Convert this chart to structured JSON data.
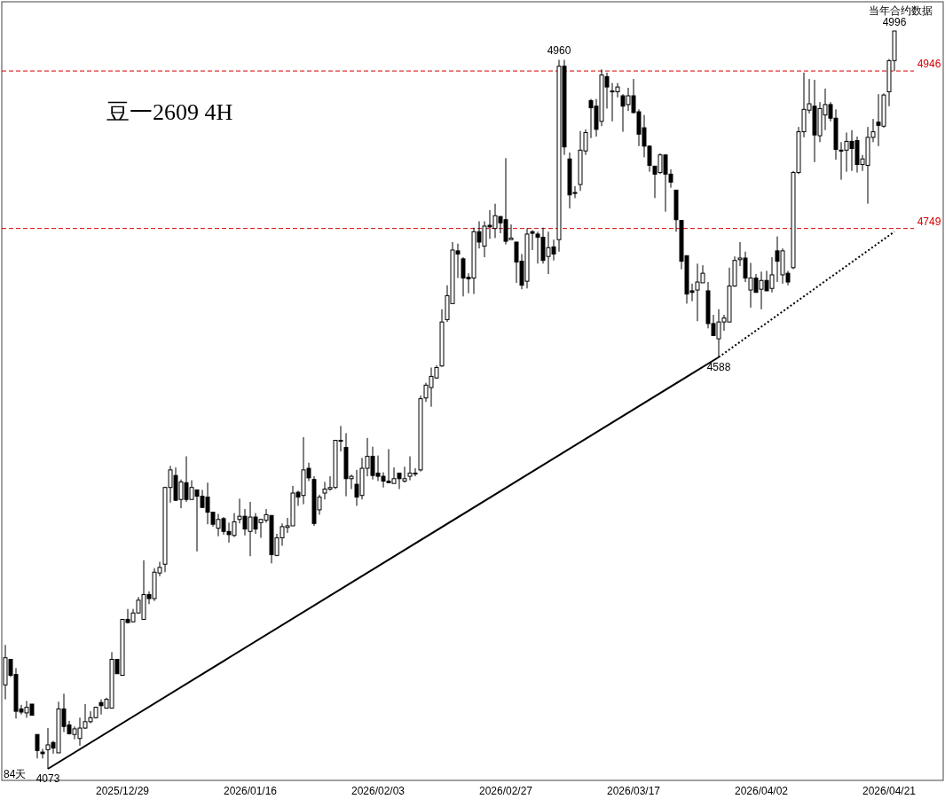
{
  "chart_data": {
    "type": "candlestick",
    "title": "豆一2609 4H",
    "categories": [
      null,
      null,
      null,
      null,
      null,
      null,
      null,
      null,
      null,
      null,
      null,
      null,
      null,
      null,
      null,
      null,
      null,
      null,
      null,
      null,
      null,
      null,
      "2025/12/29",
      null,
      null,
      null,
      null,
      null,
      null,
      null,
      null,
      null,
      null,
      null,
      null,
      null,
      null,
      null,
      null,
      null,
      null,
      null,
      null,
      null,
      null,
      null,
      "2026/01/16",
      null,
      null,
      null,
      null,
      null,
      null,
      null,
      null,
      null,
      null,
      null,
      null,
      null,
      null,
      null,
      null,
      null,
      null,
      null,
      null,
      null,
      null,
      null,
      "2026/02/03",
      null,
      null,
      null,
      null,
      null,
      null,
      null,
      null,
      null,
      null,
      null,
      null,
      null,
      null,
      null,
      null,
      null,
      null,
      null,
      null,
      null,
      null,
      null,
      "2026/02/27",
      null,
      null,
      null,
      null,
      null,
      null,
      null,
      null,
      null,
      null,
      null,
      null,
      null,
      null,
      null,
      null,
      null,
      null,
      null,
      null,
      null,
      null,
      null,
      "2026/03/17",
      null,
      null,
      null,
      null,
      null,
      null,
      null,
      null,
      null,
      null,
      null,
      null,
      null,
      null,
      null,
      null,
      null,
      null,
      null,
      null,
      null,
      null,
      null,
      "2026/04/02",
      null,
      null,
      null,
      null,
      null,
      null,
      null,
      null,
      null,
      null,
      null,
      null,
      null,
      null,
      null,
      null,
      null,
      null,
      null,
      null,
      null,
      null,
      null,
      "2026/04/21",
      null
    ],
    "ohlc": [
      [
        4178,
        4228,
        4160,
        4212
      ],
      [
        4210,
        4210,
        4188,
        4190
      ],
      [
        4191,
        4199,
        4136,
        4145
      ],
      [
        4148,
        4153,
        4141,
        4144
      ],
      [
        4143,
        4158,
        4137,
        4150
      ],
      [
        4154,
        4154,
        4140,
        4140
      ],
      [
        4116,
        4116,
        4086,
        4096
      ],
      [
        4094,
        4098,
        4086,
        4092
      ],
      [
        4097,
        4124,
        4073,
        4103
      ],
      [
        4106,
        4108,
        4092,
        4099
      ],
      [
        4093,
        4157,
        4093,
        4148
      ],
      [
        4148,
        4167,
        4119,
        4126
      ],
      [
        4128,
        4133,
        4116,
        4117
      ],
      [
        4116,
        4126,
        4110,
        4123
      ],
      [
        4111,
        4137,
        4102,
        4124
      ],
      [
        4124,
        4154,
        4123,
        4132
      ],
      [
        4132,
        4145,
        4130,
        4137
      ],
      [
        4137,
        4151,
        4136,
        4150
      ],
      [
        4156,
        4160,
        4141,
        4152
      ],
      [
        4149,
        4162,
        4149,
        4160
      ],
      [
        4149,
        4219,
        4149,
        4210
      ],
      [
        4210,
        4210,
        4192,
        4192
      ],
      [
        4190,
        4260,
        4190,
        4260
      ],
      [
        4260,
        4273,
        4255,
        4256
      ],
      [
        4257,
        4273,
        4256,
        4268
      ],
      [
        4268,
        4288,
        4267,
        4284
      ],
      [
        4260,
        4334,
        4260,
        4291
      ],
      [
        4291,
        4295,
        4279,
        4286
      ],
      [
        4286,
        4324,
        4283,
        4319
      ],
      [
        4318,
        4332,
        4314,
        4325
      ],
      [
        4329,
        4426,
        4319,
        4425
      ],
      [
        4425,
        4452,
        4406,
        4447
      ],
      [
        4440,
        4450,
        4408,
        4409
      ],
      [
        4410,
        4435,
        4399,
        4432
      ],
      [
        4431,
        4464,
        4407,
        4410
      ],
      [
        4410,
        4434,
        4410,
        4425
      ],
      [
        4422,
        4422,
        4345,
        4414
      ],
      [
        4414,
        4422,
        4400,
        4400
      ],
      [
        4413,
        4431,
        4379,
        4394
      ],
      [
        4394,
        4394,
        4376,
        4379
      ],
      [
        4374,
        4392,
        4364,
        4385
      ],
      [
        4386,
        4388,
        4366,
        4370
      ],
      [
        4370,
        4381,
        4356,
        4366
      ],
      [
        4365,
        4393,
        4363,
        4382
      ],
      [
        4385,
        4411,
        4380,
        4389
      ],
      [
        4389,
        4398,
        4365,
        4373
      ],
      [
        4370,
        4407,
        4339,
        4388
      ],
      [
        4388,
        4393,
        4367,
        4373
      ],
      [
        4381,
        4386,
        4362,
        4385
      ],
      [
        4384,
        4398,
        4381,
        4391
      ],
      [
        4390,
        4390,
        4330,
        4341
      ],
      [
        4340,
        4367,
        4339,
        4362
      ],
      [
        4362,
        4380,
        4352,
        4376
      ],
      [
        4375,
        4387,
        4368,
        4377
      ],
      [
        4377,
        4427,
        4377,
        4418
      ],
      [
        4419,
        4421,
        4402,
        4413
      ],
      [
        4415,
        4488,
        4404,
        4447
      ],
      [
        4449,
        4456,
        4433,
        4437
      ],
      [
        4435,
        4439,
        4377,
        4380
      ],
      [
        4397,
        4416,
        4391,
        4413
      ],
      [
        4418,
        4432,
        4410,
        4423
      ],
      [
        4423,
        4439,
        4421,
        4425
      ],
      [
        4425,
        4484,
        4423,
        4484
      ],
      [
        4484,
        4502,
        4470,
        4483
      ],
      [
        4475,
        4493,
        4414,
        4436
      ],
      [
        4436,
        4441,
        4423,
        4439
      ],
      [
        4429,
        4447,
        4402,
        4413
      ],
      [
        4415,
        4462,
        4410,
        4449
      ],
      [
        4449,
        4487,
        4439,
        4464
      ],
      [
        4464,
        4476,
        4435,
        4440
      ],
      [
        4443,
        4465,
        4433,
        4439
      ],
      [
        4439,
        4444,
        4425,
        4433
      ],
      [
        4433,
        4473,
        4431,
        4431
      ],
      [
        4430,
        4450,
        4430,
        4436
      ],
      [
        4443,
        4443,
        4423,
        4436
      ],
      [
        4433,
        4451,
        4431,
        4436
      ],
      [
        4439,
        4464,
        4434,
        4443
      ],
      [
        4443,
        4449,
        4439,
        4442
      ],
      [
        4447,
        4540,
        4445,
        4536
      ],
      [
        4537,
        4556,
        4532,
        4553
      ],
      [
        4550,
        4575,
        4526,
        4564
      ],
      [
        4562,
        4578,
        4561,
        4575
      ],
      [
        4577,
        4648,
        4576,
        4632
      ],
      [
        4635,
        4678,
        4632,
        4665
      ],
      [
        4655,
        4732,
        4655,
        4722
      ],
      [
        4721,
        4730,
        4687,
        4717
      ],
      [
        4711,
        4713,
        4664,
        4687
      ],
      [
        4688,
        4693,
        4668,
        4686
      ],
      [
        4687,
        4750,
        4667,
        4745
      ],
      [
        4745,
        4758,
        4724,
        4732
      ],
      [
        4727,
        4758,
        4713,
        4752
      ],
      [
        4753,
        4772,
        4736,
        4751
      ],
      [
        4749,
        4780,
        4737,
        4765
      ],
      [
        4764,
        4764,
        4743,
        4756
      ],
      [
        4760,
        4837,
        4729,
        4733
      ],
      [
        4735,
        4754,
        4735,
        4737
      ],
      [
        4732,
        4732,
        4681,
        4707
      ],
      [
        4708,
        4717,
        4673,
        4678
      ],
      [
        4683,
        4749,
        4674,
        4742
      ],
      [
        4745,
        4747,
        4722,
        4743
      ],
      [
        4742,
        4745,
        4705,
        4738
      ],
      [
        4738,
        4750,
        4705,
        4709
      ],
      [
        4714,
        4745,
        4692,
        4725
      ],
      [
        4726,
        4735,
        4709,
        4717
      ],
      [
        4735,
        4960,
        4720,
        4952
      ],
      [
        4952,
        4960,
        4841,
        4851
      ],
      [
        4836,
        4844,
        4774,
        4791
      ],
      [
        4794,
        4802,
        4787,
        4793
      ],
      [
        4804,
        4871,
        4796,
        4847
      ],
      [
        4846,
        4873,
        4841,
        4869
      ],
      [
        4909,
        4911,
        4862,
        4900
      ],
      [
        4902,
        4911,
        4864,
        4873
      ],
      [
        4883,
        4948,
        4877,
        4941
      ],
      [
        4939,
        4944,
        4899,
        4926
      ],
      [
        4921,
        4931,
        4883,
        4920
      ],
      [
        4920,
        4931,
        4913,
        4926
      ],
      [
        4915,
        4917,
        4870,
        4902
      ],
      [
        4904,
        4925,
        4896,
        4915
      ],
      [
        4915,
        4936,
        4893,
        4894
      ],
      [
        4895,
        4898,
        4852,
        4867
      ],
      [
        4875,
        4891,
        4838,
        4852
      ],
      [
        4852,
        4853,
        4820,
        4828
      ],
      [
        4827,
        4827,
        4787,
        4817
      ],
      [
        4819,
        4843,
        4817,
        4841
      ],
      [
        4841,
        4841,
        4770,
        4817
      ],
      [
        4817,
        4823,
        4800,
        4807
      ],
      [
        4797,
        4797,
        4745,
        4760
      ],
      [
        4759,
        4759,
        4698,
        4708
      ],
      [
        4715,
        4715,
        4655,
        4667
      ],
      [
        4671,
        4680,
        4658,
        4669
      ],
      [
        4672,
        4705,
        4633,
        4682
      ],
      [
        4681,
        4703,
        4681,
        4693
      ],
      [
        4671,
        4682,
        4624,
        4630
      ],
      [
        4630,
        4641,
        4615,
        4615
      ],
      [
        4611,
        4648,
        4588,
        4632
      ],
      [
        4632,
        4641,
        4621,
        4637
      ],
      [
        4632,
        4700,
        4632,
        4677
      ],
      [
        4677,
        4714,
        4676,
        4709
      ],
      [
        4710,
        4732,
        4702,
        4712
      ],
      [
        4712,
        4720,
        4682,
        4687
      ],
      [
        4672,
        4706,
        4650,
        4687
      ],
      [
        4687,
        4692,
        4669,
        4669
      ],
      [
        4673,
        4695,
        4648,
        4684
      ],
      [
        4684,
        4696,
        4671,
        4671
      ],
      [
        4674,
        4713,
        4669,
        4691
      ],
      [
        4721,
        4739,
        4682,
        4708
      ],
      [
        4691,
        4724,
        4680,
        4721
      ],
      [
        4693,
        4696,
        4678,
        4682
      ],
      [
        4700,
        4821,
        4698,
        4819
      ],
      [
        4819,
        4876,
        4817,
        4870
      ],
      [
        4870,
        4944,
        4863,
        4898
      ],
      [
        4897,
        4936,
        4893,
        4905
      ],
      [
        4902,
        4935,
        4832,
        4866
      ],
      [
        4865,
        4907,
        4857,
        4899
      ],
      [
        4891,
        4924,
        4872,
        4904
      ],
      [
        4904,
        4907,
        4883,
        4887
      ],
      [
        4887,
        4898,
        4835,
        4848
      ],
      [
        4847,
        4857,
        4810,
        4846
      ],
      [
        4847,
        4869,
        4820,
        4858
      ],
      [
        4858,
        4872,
        4821,
        4849
      ],
      [
        4859,
        4864,
        4819,
        4829
      ],
      [
        4829,
        4841,
        4821,
        4836
      ],
      [
        4828,
        4876,
        4780,
        4863
      ],
      [
        4863,
        4886,
        4857,
        4870
      ],
      [
        4882,
        4917,
        4852,
        4878
      ],
      [
        4877,
        4918,
        4875,
        4916
      ],
      [
        4920,
        4961,
        4902,
        4959
      ],
      [
        4959,
        4996,
        4946,
        4996
      ]
    ],
    "series": [
      {
        "type": "line",
        "values": [
          null,
          null,
          null,
          null,
          null,
          null,
          null,
          null,
          4073,
          null,
          null,
          null,
          null,
          null,
          null,
          null,
          null,
          null,
          null,
          null,
          null,
          null,
          null,
          null,
          null,
          null,
          null,
          null,
          null,
          null,
          null,
          null,
          null,
          null,
          null,
          null,
          null,
          null,
          null,
          null,
          null,
          null,
          null,
          null,
          null,
          null,
          null,
          null,
          null,
          null,
          null,
          null,
          null,
          null,
          null,
          null,
          null,
          null,
          null,
          null,
          null,
          null,
          null,
          null,
          null,
          null,
          null,
          null,
          null,
          null,
          null,
          null,
          null,
          null,
          null,
          null,
          null,
          null,
          null,
          null,
          null,
          null,
          null,
          null,
          null,
          null,
          null,
          null,
          null,
          null,
          null,
          null,
          null,
          null,
          null,
          null,
          null,
          null,
          null,
          null,
          null,
          null,
          null,
          null,
          null,
          null,
          null,
          null,
          null,
          null,
          null,
          null,
          null,
          null,
          null,
          null,
          null,
          null,
          null,
          null,
          null,
          null,
          null,
          null,
          null,
          null,
          null,
          null,
          null,
          null,
          null,
          null,
          null,
          null,
          4588,
          null,
          null,
          null,
          null,
          null,
          null,
          null,
          null,
          null,
          null,
          null,
          null,
          null,
          null,
          null,
          null,
          null,
          null,
          null,
          null,
          null,
          null,
          null,
          null,
          null,
          null,
          null,
          null,
          null,
          null,
          null,
          null,
          null
        ],
        "color": "#000000",
        "line_style": "solid"
      },
      {
        "type": "line",
        "values": [
          null,
          null,
          null,
          null,
          null,
          null,
          null,
          null,
          null,
          null,
          null,
          null,
          null,
          null,
          null,
          null,
          null,
          null,
          null,
          null,
          null,
          null,
          null,
          null,
          null,
          null,
          null,
          null,
          null,
          null,
          null,
          null,
          null,
          null,
          null,
          null,
          null,
          null,
          null,
          null,
          null,
          null,
          null,
          null,
          null,
          null,
          null,
          null,
          null,
          null,
          null,
          null,
          null,
          null,
          null,
          null,
          null,
          null,
          null,
          null,
          null,
          null,
          null,
          null,
          null,
          null,
          null,
          null,
          null,
          null,
          null,
          null,
          null,
          null,
          null,
          null,
          null,
          null,
          null,
          null,
          null,
          null,
          null,
          null,
          null,
          null,
          null,
          null,
          null,
          null,
          null,
          null,
          null,
          null,
          null,
          null,
          null,
          null,
          null,
          null,
          null,
          null,
          null,
          null,
          null,
          null,
          null,
          null,
          null,
          null,
          null,
          null,
          null,
          null,
          null,
          null,
          null,
          null,
          null,
          null,
          null,
          null,
          null,
          null,
          null,
          null,
          null,
          null,
          null,
          null,
          null,
          null,
          null,
          null,
          4588,
          null,
          null,
          null,
          null,
          null,
          null,
          null,
          null,
          null,
          null,
          null,
          null,
          null,
          null,
          null,
          null,
          null,
          null,
          null,
          null,
          null,
          null,
          null,
          null,
          null,
          null,
          null,
          null,
          null,
          null,
          null,
          null,
          4745
        ],
        "color": "#000000",
        "line_style": "dotted"
      }
    ],
    "ref_lines": [
      {
        "axis": "y",
        "value": 4946,
        "label": "4946",
        "color": "#d40000",
        "line_style": "dashed"
      },
      {
        "axis": "y",
        "value": 4749,
        "label": "4749",
        "color": "#d40000",
        "line_style": "dashed"
      }
    ],
    "annotations": [
      {
        "text": "4960",
        "y": 4960
      },
      {
        "text": "4996",
        "y": 4996
      },
      {
        "text": "4073",
        "y": 4073
      },
      {
        "text": "4588",
        "y": 4588
      },
      "当年合约数据",
      "84天"
    ]
  }
}
